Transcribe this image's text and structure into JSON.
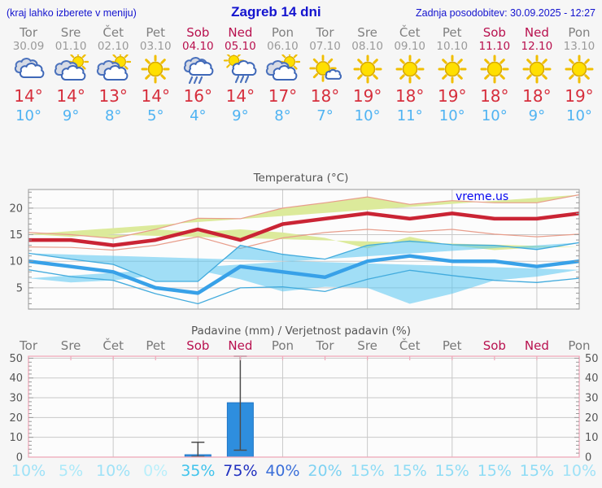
{
  "header": {
    "note": "(kraj lahko izberete v meniju)",
    "title": "Zagreb 14 dni",
    "updated": "Zadnja posodobitev: 30.09.2025 - 12:27"
  },
  "days": [
    {
      "name": "Tor",
      "date": "30.09",
      "weekend": false,
      "icon": "cloudy",
      "high": "14°",
      "low": "10°",
      "prob": "10%",
      "prob_color": "#9fe2f7"
    },
    {
      "name": "Sre",
      "date": "01.10",
      "weekend": false,
      "icon": "partly-sunny",
      "high": "14°",
      "low": "9°",
      "prob": "5%",
      "prob_color": "#ace9f9"
    },
    {
      "name": "Čet",
      "date": "02.10",
      "weekend": false,
      "icon": "partly-sunny",
      "high": "13°",
      "low": "8°",
      "prob": "10%",
      "prob_color": "#9fe2f7"
    },
    {
      "name": "Pet",
      "date": "03.10",
      "weekend": false,
      "icon": "sunny",
      "high": "14°",
      "low": "5°",
      "prob": "0%",
      "prob_color": "#b9effb"
    },
    {
      "name": "Sob",
      "date": "04.10",
      "weekend": true,
      "icon": "rain",
      "high": "16°",
      "low": "4°",
      "prob": "35%",
      "prob_color": "#41c4ec"
    },
    {
      "name": "Ned",
      "date": "05.10",
      "weekend": true,
      "icon": "rain-sun",
      "high": "14°",
      "low": "9°",
      "prob": "75%",
      "prob_color": "#2030c0"
    },
    {
      "name": "Pon",
      "date": "06.10",
      "weekend": false,
      "icon": "partly-sunny",
      "high": "17°",
      "low": "8°",
      "prob": "40%",
      "prob_color": "#3b6fd9"
    },
    {
      "name": "Tor",
      "date": "07.10",
      "weekend": false,
      "icon": "mostly-sunny",
      "high": "18°",
      "low": "7°",
      "prob": "20%",
      "prob_color": "#7ed2f2"
    },
    {
      "name": "Sre",
      "date": "08.10",
      "weekend": false,
      "icon": "sunny",
      "high": "19°",
      "low": "10°",
      "prob": "15%",
      "prob_color": "#8edcf5"
    },
    {
      "name": "Čet",
      "date": "09.10",
      "weekend": false,
      "icon": "sunny",
      "high": "18°",
      "low": "11°",
      "prob": "15%",
      "prob_color": "#8edcf5"
    },
    {
      "name": "Pet",
      "date": "10.10",
      "weekend": false,
      "icon": "sunny",
      "high": "19°",
      "low": "10°",
      "prob": "15%",
      "prob_color": "#8edcf5"
    },
    {
      "name": "Sob",
      "date": "11.10",
      "weekend": true,
      "icon": "sunny",
      "high": "18°",
      "low": "10°",
      "prob": "15%",
      "prob_color": "#8edcf5"
    },
    {
      "name": "Ned",
      "date": "12.10",
      "weekend": true,
      "icon": "sunny",
      "high": "18°",
      "low": "9°",
      "prob": "15%",
      "prob_color": "#8edcf5"
    },
    {
      "name": "Pon",
      "date": "13.10",
      "weekend": false,
      "icon": "sunny",
      "high": "19°",
      "low": "10°",
      "prob": "10%",
      "prob_color": "#9fe2f7"
    }
  ],
  "temp_chart": {
    "title": "Temperatura (°C)",
    "watermark": "vreme.us",
    "yticks": [
      5,
      10,
      15,
      20
    ],
    "ymin": 1,
    "ymax": 23.5,
    "grid_day_indices": [
      2,
      4,
      6,
      8,
      10,
      12
    ]
  },
  "precip_chart": {
    "title": "Padavine (mm) / Verjetnost padavin (%)",
    "yticks": [
      0,
      10,
      20,
      30,
      40,
      50
    ],
    "ymin": 0,
    "ymax": 51,
    "grid_day_indices": [
      2,
      4,
      6,
      8,
      10,
      12
    ]
  },
  "chart_data": [
    {
      "type": "line",
      "title": "Temperatura (°C)",
      "x": [
        "30.09",
        "01.10",
        "02.10",
        "03.10",
        "04.10",
        "05.10",
        "06.10",
        "07.10",
        "08.10",
        "09.10",
        "10.10",
        "11.10",
        "12.10",
        "13.10"
      ],
      "ylim": [
        1,
        23.5
      ],
      "grid": true,
      "series": [
        {
          "name": "max_temp",
          "color": "#ca2434",
          "values": [
            14,
            14,
            13,
            14,
            16,
            14,
            17,
            18,
            19,
            18,
            19,
            18,
            18,
            19
          ]
        },
        {
          "name": "max_band_upper",
          "color": "#e89d8b",
          "values": [
            15.4,
            15.0,
            14.3,
            16.0,
            18.1,
            18.0,
            20.0,
            21.0,
            22.1,
            20.7,
            21.4,
            21.0,
            21.0,
            22.5
          ]
        },
        {
          "name": "max_band_lower",
          "color": "#e89d8b",
          "values": [
            12.7,
            12.6,
            12.1,
            13.0,
            14.6,
            12.4,
            14.4,
            15.4,
            16.0,
            15.5,
            16.0,
            15.1,
            14.6,
            15.1
          ]
        },
        {
          "name": "min_temp",
          "color": "#38a1e8",
          "values": [
            10,
            9,
            8,
            5,
            4,
            9,
            8,
            7,
            10,
            11,
            10,
            10,
            9,
            10
          ]
        },
        {
          "name": "min_band_upper",
          "color": "#42abdd",
          "values": [
            11.5,
            10.4,
            9.4,
            6.2,
            6.2,
            13.0,
            11.3,
            10.4,
            13.0,
            13.8,
            13.1,
            13.0,
            12.2,
            13.5
          ]
        },
        {
          "name": "min_band_lower",
          "color": "#42abdd",
          "values": [
            8.4,
            7.1,
            6.4,
            3.9,
            2.0,
            5.0,
            5.2,
            4.3,
            6.6,
            8.3,
            7.3,
            6.4,
            6.0,
            6.8
          ]
        }
      ]
    },
    {
      "type": "bar",
      "title": "Padavine (mm) / Verjetnost padavin (%)",
      "categories": [
        "Tor",
        "Sre",
        "Čet",
        "Pet",
        "Sob",
        "Ned",
        "Pon",
        "Tor",
        "Sre",
        "Čet",
        "Pet",
        "Sob",
        "Ned",
        "Pon"
      ],
      "values": [
        0,
        0,
        0,
        0,
        1.2,
        27.5,
        0,
        0,
        0,
        0,
        0,
        0,
        0,
        0
      ],
      "whiskers": [
        {
          "index": 4,
          "lo": 0.3,
          "hi": 7.5
        },
        {
          "index": 5,
          "lo": 3.5,
          "hi": 51
        }
      ],
      "probabilities_percent": [
        10,
        5,
        10,
        0,
        35,
        75,
        40,
        20,
        15,
        15,
        15,
        15,
        15,
        10
      ],
      "ylim": [
        0,
        51
      ],
      "ylabel_left_and_right": true
    }
  ],
  "colors": {
    "header_text": "#1414cf",
    "weekend": "#b8104e",
    "high_temp": "#d62e3c",
    "low_temp": "#4fb3f2",
    "max_line": "#ca2434",
    "max_band": "#dcea9b",
    "min_line": "#38a1e8",
    "min_band": "#a9e0f3",
    "band_overlap": "#7ecb7d",
    "bar_fill": "#2e8ede",
    "precip_frame": "#efa9ba",
    "watermark": "#0505f0"
  }
}
